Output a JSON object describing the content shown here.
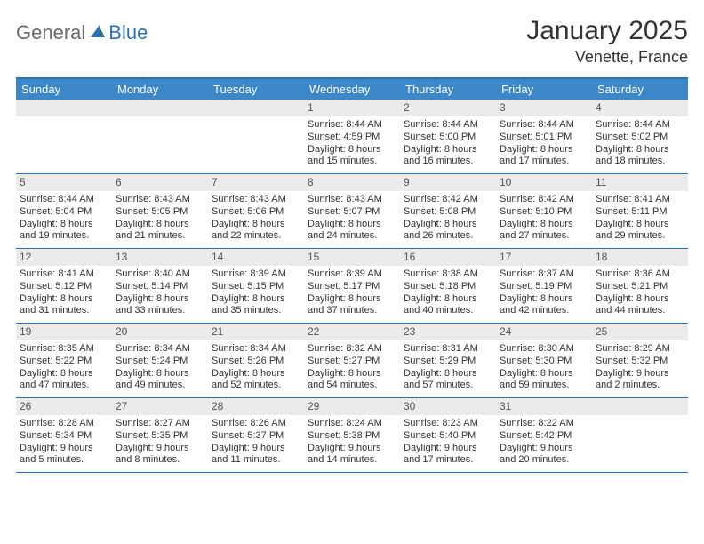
{
  "brand": {
    "part1": "General",
    "part2": "Blue"
  },
  "title": {
    "month": "January 2025",
    "location": "Venette, France"
  },
  "colors": {
    "header_bg": "#3b87c8",
    "border": "#2b71b8",
    "daynum_bg": "#ebebeb",
    "text": "#333333",
    "logo_gray": "#6b6b6b",
    "logo_blue": "#2b71b8"
  },
  "typography": {
    "month_title_size": 30,
    "location_size": 18,
    "head_size": 13,
    "body_size": 11
  },
  "day_headers": [
    "Sunday",
    "Monday",
    "Tuesday",
    "Wednesday",
    "Thursday",
    "Friday",
    "Saturday"
  ],
  "weeks": [
    [
      null,
      null,
      null,
      {
        "n": "1",
        "sr": "Sunrise: 8:44 AM",
        "ss": "Sunset: 4:59 PM",
        "d1": "Daylight: 8 hours",
        "d2": "and 15 minutes."
      },
      {
        "n": "2",
        "sr": "Sunrise: 8:44 AM",
        "ss": "Sunset: 5:00 PM",
        "d1": "Daylight: 8 hours",
        "d2": "and 16 minutes."
      },
      {
        "n": "3",
        "sr": "Sunrise: 8:44 AM",
        "ss": "Sunset: 5:01 PM",
        "d1": "Daylight: 8 hours",
        "d2": "and 17 minutes."
      },
      {
        "n": "4",
        "sr": "Sunrise: 8:44 AM",
        "ss": "Sunset: 5:02 PM",
        "d1": "Daylight: 8 hours",
        "d2": "and 18 minutes."
      }
    ],
    [
      {
        "n": "5",
        "sr": "Sunrise: 8:44 AM",
        "ss": "Sunset: 5:04 PM",
        "d1": "Daylight: 8 hours",
        "d2": "and 19 minutes."
      },
      {
        "n": "6",
        "sr": "Sunrise: 8:43 AM",
        "ss": "Sunset: 5:05 PM",
        "d1": "Daylight: 8 hours",
        "d2": "and 21 minutes."
      },
      {
        "n": "7",
        "sr": "Sunrise: 8:43 AM",
        "ss": "Sunset: 5:06 PM",
        "d1": "Daylight: 8 hours",
        "d2": "and 22 minutes."
      },
      {
        "n": "8",
        "sr": "Sunrise: 8:43 AM",
        "ss": "Sunset: 5:07 PM",
        "d1": "Daylight: 8 hours",
        "d2": "and 24 minutes."
      },
      {
        "n": "9",
        "sr": "Sunrise: 8:42 AM",
        "ss": "Sunset: 5:08 PM",
        "d1": "Daylight: 8 hours",
        "d2": "and 26 minutes."
      },
      {
        "n": "10",
        "sr": "Sunrise: 8:42 AM",
        "ss": "Sunset: 5:10 PM",
        "d1": "Daylight: 8 hours",
        "d2": "and 27 minutes."
      },
      {
        "n": "11",
        "sr": "Sunrise: 8:41 AM",
        "ss": "Sunset: 5:11 PM",
        "d1": "Daylight: 8 hours",
        "d2": "and 29 minutes."
      }
    ],
    [
      {
        "n": "12",
        "sr": "Sunrise: 8:41 AM",
        "ss": "Sunset: 5:12 PM",
        "d1": "Daylight: 8 hours",
        "d2": "and 31 minutes."
      },
      {
        "n": "13",
        "sr": "Sunrise: 8:40 AM",
        "ss": "Sunset: 5:14 PM",
        "d1": "Daylight: 8 hours",
        "d2": "and 33 minutes."
      },
      {
        "n": "14",
        "sr": "Sunrise: 8:39 AM",
        "ss": "Sunset: 5:15 PM",
        "d1": "Daylight: 8 hours",
        "d2": "and 35 minutes."
      },
      {
        "n": "15",
        "sr": "Sunrise: 8:39 AM",
        "ss": "Sunset: 5:17 PM",
        "d1": "Daylight: 8 hours",
        "d2": "and 37 minutes."
      },
      {
        "n": "16",
        "sr": "Sunrise: 8:38 AM",
        "ss": "Sunset: 5:18 PM",
        "d1": "Daylight: 8 hours",
        "d2": "and 40 minutes."
      },
      {
        "n": "17",
        "sr": "Sunrise: 8:37 AM",
        "ss": "Sunset: 5:19 PM",
        "d1": "Daylight: 8 hours",
        "d2": "and 42 minutes."
      },
      {
        "n": "18",
        "sr": "Sunrise: 8:36 AM",
        "ss": "Sunset: 5:21 PM",
        "d1": "Daylight: 8 hours",
        "d2": "and 44 minutes."
      }
    ],
    [
      {
        "n": "19",
        "sr": "Sunrise: 8:35 AM",
        "ss": "Sunset: 5:22 PM",
        "d1": "Daylight: 8 hours",
        "d2": "and 47 minutes."
      },
      {
        "n": "20",
        "sr": "Sunrise: 8:34 AM",
        "ss": "Sunset: 5:24 PM",
        "d1": "Daylight: 8 hours",
        "d2": "and 49 minutes."
      },
      {
        "n": "21",
        "sr": "Sunrise: 8:34 AM",
        "ss": "Sunset: 5:26 PM",
        "d1": "Daylight: 8 hours",
        "d2": "and 52 minutes."
      },
      {
        "n": "22",
        "sr": "Sunrise: 8:32 AM",
        "ss": "Sunset: 5:27 PM",
        "d1": "Daylight: 8 hours",
        "d2": "and 54 minutes."
      },
      {
        "n": "23",
        "sr": "Sunrise: 8:31 AM",
        "ss": "Sunset: 5:29 PM",
        "d1": "Daylight: 8 hours",
        "d2": "and 57 minutes."
      },
      {
        "n": "24",
        "sr": "Sunrise: 8:30 AM",
        "ss": "Sunset: 5:30 PM",
        "d1": "Daylight: 8 hours",
        "d2": "and 59 minutes."
      },
      {
        "n": "25",
        "sr": "Sunrise: 8:29 AM",
        "ss": "Sunset: 5:32 PM",
        "d1": "Daylight: 9 hours",
        "d2": "and 2 minutes."
      }
    ],
    [
      {
        "n": "26",
        "sr": "Sunrise: 8:28 AM",
        "ss": "Sunset: 5:34 PM",
        "d1": "Daylight: 9 hours",
        "d2": "and 5 minutes."
      },
      {
        "n": "27",
        "sr": "Sunrise: 8:27 AM",
        "ss": "Sunset: 5:35 PM",
        "d1": "Daylight: 9 hours",
        "d2": "and 8 minutes."
      },
      {
        "n": "28",
        "sr": "Sunrise: 8:26 AM",
        "ss": "Sunset: 5:37 PM",
        "d1": "Daylight: 9 hours",
        "d2": "and 11 minutes."
      },
      {
        "n": "29",
        "sr": "Sunrise: 8:24 AM",
        "ss": "Sunset: 5:38 PM",
        "d1": "Daylight: 9 hours",
        "d2": "and 14 minutes."
      },
      {
        "n": "30",
        "sr": "Sunrise: 8:23 AM",
        "ss": "Sunset: 5:40 PM",
        "d1": "Daylight: 9 hours",
        "d2": "and 17 minutes."
      },
      {
        "n": "31",
        "sr": "Sunrise: 8:22 AM",
        "ss": "Sunset: 5:42 PM",
        "d1": "Daylight: 9 hours",
        "d2": "and 20 minutes."
      },
      null
    ]
  ]
}
